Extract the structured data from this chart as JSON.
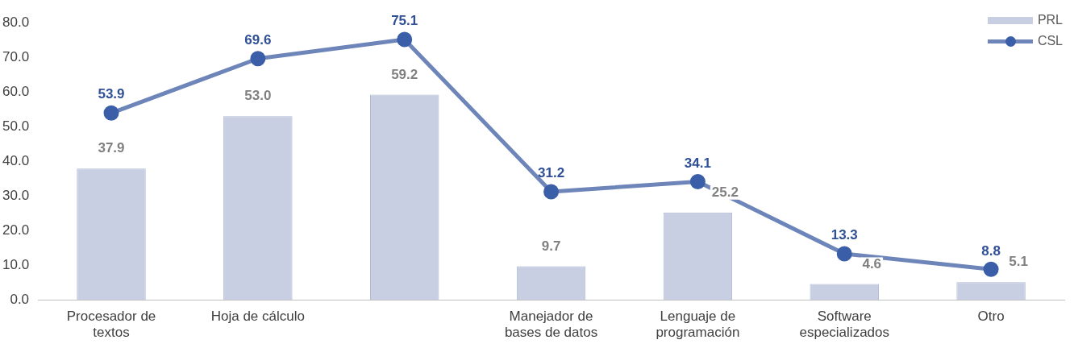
{
  "chart_data": {
    "type": "bar",
    "categories": [
      "Procesador de textos",
      "Hoja de cálculo",
      null,
      "Manejador de bases de datos",
      "Lenguaje de programación",
      "Software especializados",
      "Otro"
    ],
    "series": [
      {
        "name": "PRL",
        "color": "#c8cfe2",
        "values": [
          37.9,
          53.0,
          59.2,
          9.7,
          25.2,
          4.6,
          5.1
        ],
        "value_labels": [
          "37.9",
          "53.0",
          "59.2",
          "9.7",
          "25.2",
          "4.6",
          "5.1"
        ]
      },
      {
        "name": "CSL",
        "type": "line",
        "color": "#6d85b9",
        "values": [
          53.9,
          69.6,
          75.1,
          31.2,
          34.1,
          13.3,
          8.8
        ],
        "value_labels": [
          "53.9",
          "69.6",
          "75.1",
          "31.2",
          "34.1",
          "13.3",
          "8.8"
        ]
      }
    ],
    "ylim": [
      0,
      80
    ],
    "yticks": [
      {
        "value": 0,
        "label": "0.0"
      },
      {
        "value": 10,
        "label": "10.0"
      },
      {
        "value": 20,
        "label": "20.0"
      },
      {
        "value": 30,
        "label": "30.0"
      },
      {
        "value": 40,
        "label": "40.0"
      },
      {
        "value": 50,
        "label": "50.0"
      },
      {
        "value": 60,
        "label": "60.0"
      },
      {
        "value": 70,
        "label": "70.0"
      },
      {
        "value": 80,
        "label": "80.0"
      }
    ],
    "grid": false,
    "legend": "top right",
    "marker": "circle"
  }
}
